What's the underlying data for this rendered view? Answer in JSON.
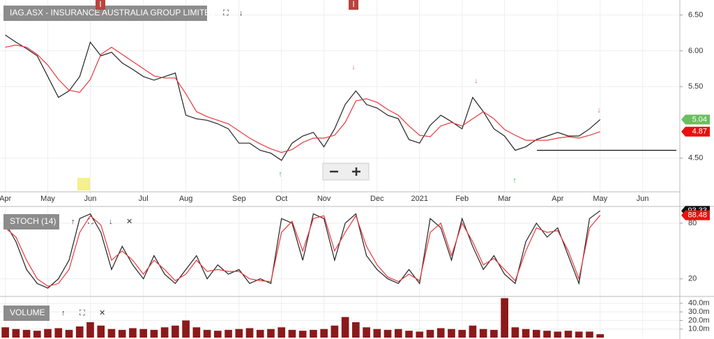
{
  "chart_data": [
    {
      "type": "line",
      "title": "IAG.ASX - INSURANCE AUSTRALIA GROUP LIMITED",
      "markers": [
        "I",
        "I"
      ],
      "categories": [
        "Apr",
        null,
        null,
        null,
        "May",
        null,
        null,
        null,
        "Jun",
        null,
        null,
        null,
        null,
        "Jul",
        null,
        null,
        null,
        "Aug",
        null,
        null,
        null,
        null,
        "Sep",
        null,
        null,
        null,
        "Oct",
        null,
        null,
        null,
        "Nov",
        null,
        null,
        null,
        null,
        "Dec",
        null,
        null,
        null,
        "2021",
        null,
        null,
        null,
        "Feb",
        null,
        null,
        null,
        "Mar",
        null,
        null,
        null,
        null,
        "Apr",
        null,
        null,
        null,
        "May",
        null,
        null,
        null,
        "Jun",
        null,
        null,
        null
      ],
      "series": [
        {
          "color": "#222222",
          "tag_color": "#6abf5e",
          "values": [
            6.22,
            6.12,
            6.03,
            5.93,
            5.64,
            5.35,
            5.44,
            5.64,
            6.12,
            5.93,
            5.98,
            5.83,
            5.74,
            5.64,
            5.59,
            5.64,
            5.69,
            5.1,
            5.05,
            5.03,
            4.98,
            4.91,
            4.71,
            4.71,
            4.61,
            4.57,
            4.47,
            4.71,
            4.81,
            4.86,
            4.66,
            4.91,
            5.25,
            5.44,
            5.25,
            5.2,
            5.1,
            5.05,
            4.76,
            4.71,
            4.96,
            5.1,
            5.01,
            4.91,
            5.35,
            5.15,
            4.91,
            4.81,
            4.61,
            4.66,
            4.76,
            4.81,
            4.86,
            4.81,
            4.81,
            4.91,
            5.04,
            null,
            null,
            null,
            null,
            null,
            null,
            null
          ]
        },
        {
          "color": "#e8383d",
          "tag_color": "#e8100f",
          "values": [
            6.05,
            6.08,
            6.05,
            5.95,
            5.8,
            5.6,
            5.45,
            5.42,
            5.6,
            5.95,
            6.05,
            5.95,
            5.85,
            5.75,
            5.65,
            5.62,
            5.62,
            5.4,
            5.15,
            5.08,
            5.03,
            4.98,
            4.88,
            4.78,
            4.7,
            4.63,
            4.58,
            4.62,
            4.72,
            4.78,
            4.78,
            4.82,
            5.0,
            5.3,
            5.33,
            5.28,
            5.18,
            5.1,
            4.95,
            4.82,
            4.8,
            4.95,
            5.0,
            4.95,
            5.05,
            5.15,
            5.05,
            4.9,
            4.82,
            4.75,
            4.75,
            4.75,
            4.78,
            4.8,
            4.78,
            4.82,
            4.87,
            null,
            null,
            null,
            null,
            null,
            null,
            null
          ]
        }
      ],
      "support_level": 4.61,
      "ylim": [
        4.03,
        6.71
      ],
      "yticks": [
        {
          "value": 4.5,
          "label": "4.50"
        },
        {
          "value": 5.5,
          "label": "5.50"
        },
        {
          "value": 6,
          "label": "6.00"
        },
        {
          "value": 6.5,
          "label": "6.50"
        }
      ],
      "grid": true
    },
    {
      "type": "line",
      "title": "STOCH (14)",
      "series": [
        {
          "color": "#222222",
          "tag_color": "#111111",
          "values": [
            80,
            60,
            30,
            15,
            10,
            20,
            40,
            85,
            90,
            70,
            30,
            55,
            35,
            20,
            45,
            25,
            15,
            30,
            45,
            20,
            35,
            25,
            30,
            15,
            20,
            15,
            85,
            80,
            40,
            90,
            85,
            40,
            80,
            90,
            45,
            30,
            20,
            15,
            30,
            15,
            85,
            75,
            40,
            85,
            55,
            30,
            45,
            25,
            15,
            60,
            80,
            65,
            75,
            45,
            15,
            85,
            93.33,
            null,
            null,
            null,
            null,
            null,
            null,
            null
          ]
        },
        {
          "color": "#e8383d",
          "tag_color": "#e8100f",
          "values": [
            75,
            65,
            40,
            20,
            12,
            15,
            30,
            70,
            88,
            78,
            40,
            50,
            40,
            25,
            40,
            30,
            18,
            25,
            40,
            28,
            30,
            28,
            28,
            20,
            18,
            17,
            70,
            82,
            50,
            85,
            88,
            50,
            70,
            88,
            55,
            35,
            22,
            17,
            25,
            18,
            70,
            80,
            45,
            80,
            60,
            35,
            42,
            30,
            18,
            50,
            75,
            70,
            72,
            50,
            20,
            75,
            88.48,
            null,
            null,
            null,
            null,
            null,
            null,
            null
          ]
        }
      ],
      "ylim": [
        1,
        98
      ],
      "yticks": [
        20,
        80
      ],
      "grid": true
    },
    {
      "type": "bar",
      "title": "VOLUME",
      "color": "#8b1a1a",
      "values": [
        12000000,
        10000000,
        9000000,
        8000000,
        10000000,
        11000000,
        9000000,
        13000000,
        18000000,
        14000000,
        10000000,
        9000000,
        11000000,
        10000000,
        9000000,
        12000000,
        14000000,
        20000000,
        12000000,
        9000000,
        8000000,
        9000000,
        10000000,
        11000000,
        9000000,
        10000000,
        12000000,
        9000000,
        8000000,
        9000000,
        10000000,
        14000000,
        24000000,
        18000000,
        12000000,
        10000000,
        9000000,
        10000000,
        8000000,
        7000000,
        9000000,
        11000000,
        10000000,
        9000000,
        14000000,
        10000000,
        9000000,
        46000000,
        12000000,
        10000000,
        9000000,
        8000000,
        7000000,
        8000000,
        7000000,
        7000000,
        4000000,
        null,
        null,
        null,
        null,
        null,
        null,
        null
      ],
      "ylim": [
        0,
        48000000
      ],
      "yticks": [
        {
          "value": 10000000,
          "label": "10.0m"
        },
        {
          "value": 20000000,
          "label": "20.0m"
        },
        {
          "value": 30000000,
          "label": "30.0m"
        },
        {
          "value": 40000000,
          "label": "40.0m"
        }
      ],
      "grid": true
    }
  ]
}
